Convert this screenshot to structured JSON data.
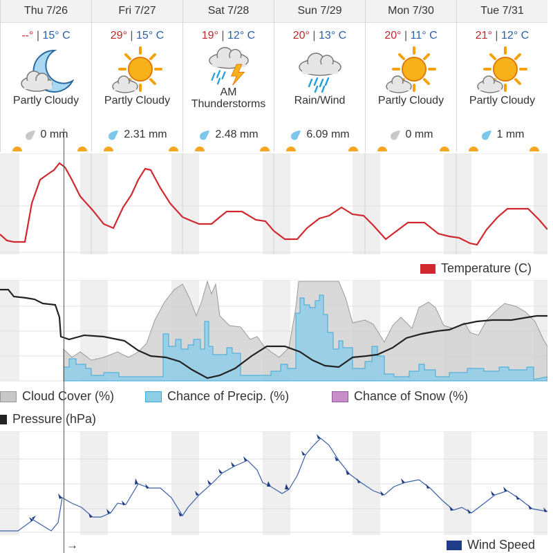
{
  "days": [
    {
      "label": "Thu 7/26",
      "hi": "--°",
      "lo": "15° C",
      "condition": "Partly Cloudy",
      "precip": "0 mm",
      "icon": "moon-cloud",
      "drop": "gray"
    },
    {
      "label": "Fri 7/27",
      "hi": "29°",
      "lo": "15° C",
      "condition": "Partly Cloudy",
      "precip": "2.31 mm",
      "icon": "sun-cloud",
      "drop": "blue"
    },
    {
      "label": "Sat 7/28",
      "hi": "19°",
      "lo": "12° C",
      "condition": "AM Thunderstorms",
      "precip": "2.48 mm",
      "icon": "thunderstorm",
      "drop": "blue"
    },
    {
      "label": "Sun 7/29",
      "hi": "20°",
      "lo": "13° C",
      "condition": "Rain/Wind",
      "precip": "6.09 mm",
      "icon": "rain-cloud",
      "drop": "blue"
    },
    {
      "label": "Mon 7/30",
      "hi": "20°",
      "lo": "11° C",
      "condition": "Partly Cloudy",
      "precip": "0 mm",
      "icon": "sun-cloud",
      "drop": "gray"
    },
    {
      "label": "Tue 7/31",
      "hi": "21°",
      "lo": "12° C",
      "condition": "Partly Cloudy",
      "precip": "1 mm",
      "icon": "sun-cloud",
      "drop": "blue"
    }
  ],
  "legends": {
    "temperature": "Temperature (C)",
    "cloud": "Cloud Cover (%)",
    "precip": "Chance of Precip. (%)",
    "snow": "Chance of Snow (%)",
    "pressure": "Pressure (hPa)",
    "wind": "Wind Speed"
  },
  "cursor_label": "→",
  "colors": {
    "temperature": "#d0282e",
    "cloud": "#c8c8c8",
    "precip": "#8ecde6",
    "precip_line": "#3aa8d8",
    "snow": "#c78ec8",
    "pressure": "#222222",
    "wind": "#1f3c88",
    "night": "#eeeeee"
  },
  "chart_data": {
    "type": "line",
    "x_hours": 144,
    "temperature_series_c": [
      13,
      12.5,
      12,
      12,
      12,
      16,
      21,
      25,
      27,
      28,
      28,
      29,
      28,
      27,
      25,
      22,
      20,
      19,
      18,
      17,
      16,
      15,
      14,
      13,
      12,
      14,
      17,
      20,
      22,
      24,
      26,
      27,
      26,
      24,
      22,
      20,
      18,
      17,
      16,
      15,
      14,
      14,
      14,
      14,
      14,
      15,
      15,
      16,
      16,
      16,
      16,
      15,
      15,
      14,
      13,
      13,
      13,
      12.5,
      12.5,
      12,
      12,
      12,
      12,
      13,
      14,
      15,
      15,
      16,
      17,
      17,
      18,
      18,
      17,
      17,
      16,
      16,
      15,
      15,
      14,
      14,
      13,
      13,
      12.5,
      12.5,
      12.5,
      13,
      13,
      14,
      14,
      15,
      15,
      16,
      17,
      18,
      18,
      18,
      18,
      17,
      17,
      16,
      15,
      14,
      13,
      12,
      11.5,
      11,
      11,
      11,
      12,
      13,
      14,
      15,
      16,
      17,
      18,
      18,
      18,
      18,
      18,
      17,
      16,
      15,
      15,
      14
    ]
  }
}
